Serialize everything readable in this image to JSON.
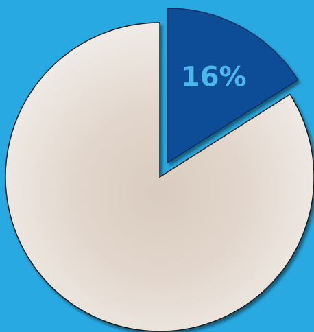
{
  "chart_data": {
    "type": "pie",
    "values": [
      16
    ],
    "value_labels": [
      "16%"
    ],
    "colors": [
      "#0e4d97"
    ],
    "background": "#29a9e1"
  }
}
